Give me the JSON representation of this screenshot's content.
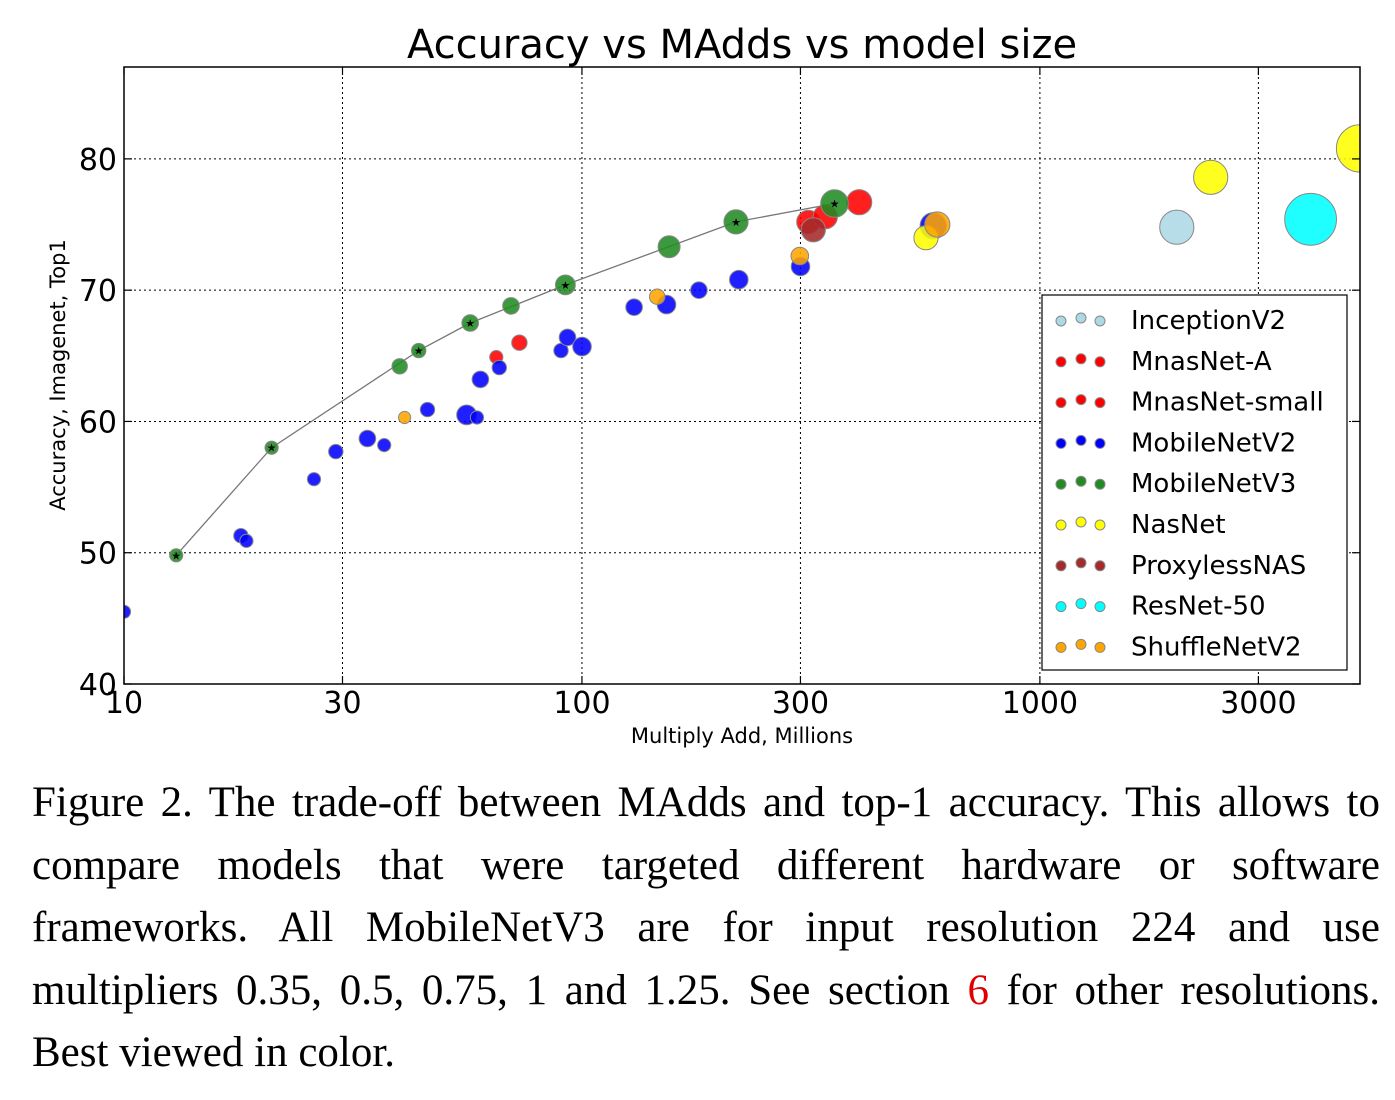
{
  "caption": {
    "before_ref": "Figure 2. The trade-off between MAdds and top-1 accuracy. This allows to compare models that were targeted different hardware or software frameworks.  All MobileNetV3 are for input resolution 224 and use multipliers 0.35, 0.5, 0.75, 1 and 1.25. See section",
    "ref": "6",
    "after_ref": "for other resolutions. Best viewed in color."
  },
  "chart_data": {
    "type": "scatter",
    "title": "Accuracy vs MAdds vs model size",
    "xlabel": "Multiply Add, Millions",
    "ylabel": "Accuracy, Imagenet, Top1",
    "x_scale": "log",
    "xlim": [
      10,
      5000
    ],
    "ylim": [
      40,
      87
    ],
    "x_ticks": [
      10,
      30,
      100,
      300,
      1000,
      3000
    ],
    "x_tick_labels": [
      "10",
      "30",
      "100",
      "300",
      "1000",
      "3000"
    ],
    "y_ticks": [
      40,
      50,
      60,
      70,
      80
    ],
    "y_tick_labels": [
      "40",
      "50",
      "60",
      "70",
      "80"
    ],
    "grid": true,
    "legend_position": "right",
    "point_size_encodes": "model size",
    "series": [
      {
        "name": "InceptionV2",
        "color": "#add8e6",
        "points": [
          {
            "x": 1990,
            "y": 74.8,
            "size": 1.55
          }
        ]
      },
      {
        "name": "MnasNet-A",
        "color": "#ff0000",
        "points": [
          {
            "x": 312,
            "y": 75.2,
            "size": 1.05
          },
          {
            "x": 340,
            "y": 75.6,
            "size": 1.1
          },
          {
            "x": 403,
            "y": 76.7,
            "size": 1.15
          }
        ]
      },
      {
        "name": "MnasNet-small",
        "color": "#ff0000",
        "points": [
          {
            "x": 65,
            "y": 64.9,
            "size": 0.6
          },
          {
            "x": 73,
            "y": 66.0,
            "size": 0.7
          }
        ]
      },
      {
        "name": "MobileNetV2",
        "color": "#0000ff",
        "points": [
          {
            "x": 10,
            "y": 45.5,
            "size": 0.6
          },
          {
            "x": 18,
            "y": 51.3,
            "size": 0.65
          },
          {
            "x": 18.5,
            "y": 50.9,
            "size": 0.6
          },
          {
            "x": 26,
            "y": 55.6,
            "size": 0.6
          },
          {
            "x": 29,
            "y": 57.7,
            "size": 0.65
          },
          {
            "x": 34,
            "y": 58.7,
            "size": 0.75
          },
          {
            "x": 37,
            "y": 58.2,
            "size": 0.6
          },
          {
            "x": 46,
            "y": 60.9,
            "size": 0.65
          },
          {
            "x": 56,
            "y": 60.5,
            "size": 0.9
          },
          {
            "x": 59,
            "y": 60.3,
            "size": 0.6
          },
          {
            "x": 60,
            "y": 63.2,
            "size": 0.75
          },
          {
            "x": 66,
            "y": 64.1,
            "size": 0.65
          },
          {
            "x": 90,
            "y": 65.4,
            "size": 0.65
          },
          {
            "x": 93,
            "y": 66.4,
            "size": 0.75
          },
          {
            "x": 100,
            "y": 65.7,
            "size": 0.85
          },
          {
            "x": 130,
            "y": 68.7,
            "size": 0.75
          },
          {
            "x": 153,
            "y": 68.9,
            "size": 0.85
          },
          {
            "x": 180,
            "y": 70.0,
            "size": 0.75
          },
          {
            "x": 220,
            "y": 70.8,
            "size": 0.85
          },
          {
            "x": 300,
            "y": 71.8,
            "size": 0.85
          },
          {
            "x": 585,
            "y": 74.9,
            "size": 1.2
          }
        ]
      },
      {
        "name": "MobileNetV3",
        "color": "#228b22",
        "points": [
          {
            "x": 13,
            "y": 49.8,
            "size": 0.6
          },
          {
            "x": 21,
            "y": 58.0,
            "size": 0.6
          },
          {
            "x": 40,
            "y": 64.2,
            "size": 0.7
          },
          {
            "x": 44,
            "y": 65.4,
            "size": 0.65
          },
          {
            "x": 57,
            "y": 67.5,
            "size": 0.75
          },
          {
            "x": 70,
            "y": 68.8,
            "size": 0.75
          },
          {
            "x": 92,
            "y": 70.4,
            "size": 0.9
          },
          {
            "x": 155,
            "y": 73.3,
            "size": 1.0
          },
          {
            "x": 217,
            "y": 75.2,
            "size": 1.1
          },
          {
            "x": 356,
            "y": 76.6,
            "size": 1.25
          }
        ]
      },
      {
        "name": "NasNet",
        "color": "#ffff00",
        "points": [
          {
            "x": 564,
            "y": 74.0,
            "size": 1.1
          },
          {
            "x": 2360,
            "y": 78.6,
            "size": 1.55
          },
          {
            "x": 5000,
            "y": 80.8,
            "size": 2.15
          }
        ]
      },
      {
        "name": "ProxylessNAS",
        "color": "#a52a2a",
        "points": [
          {
            "x": 320,
            "y": 74.6,
            "size": 1.1
          }
        ]
      },
      {
        "name": "ResNet-50",
        "color": "#00ffff",
        "points": [
          {
            "x": 3900,
            "y": 75.4,
            "size": 2.35
          }
        ]
      },
      {
        "name": "ShuffleNetV2",
        "color": "#ffa500",
        "points": [
          {
            "x": 41,
            "y": 60.3,
            "size": 0.55
          },
          {
            "x": 146,
            "y": 69.5,
            "size": 0.7
          },
          {
            "x": 299,
            "y": 72.6,
            "size": 0.8
          },
          {
            "x": 597,
            "y": 75.0,
            "size": 1.15
          }
        ]
      }
    ],
    "frontier_line": {
      "series": "MobileNetV3",
      "x": [
        13,
        21,
        44,
        57,
        92,
        217,
        356
      ],
      "y": [
        49.8,
        58.0,
        65.4,
        67.5,
        70.4,
        75.2,
        76.6
      ]
    }
  }
}
